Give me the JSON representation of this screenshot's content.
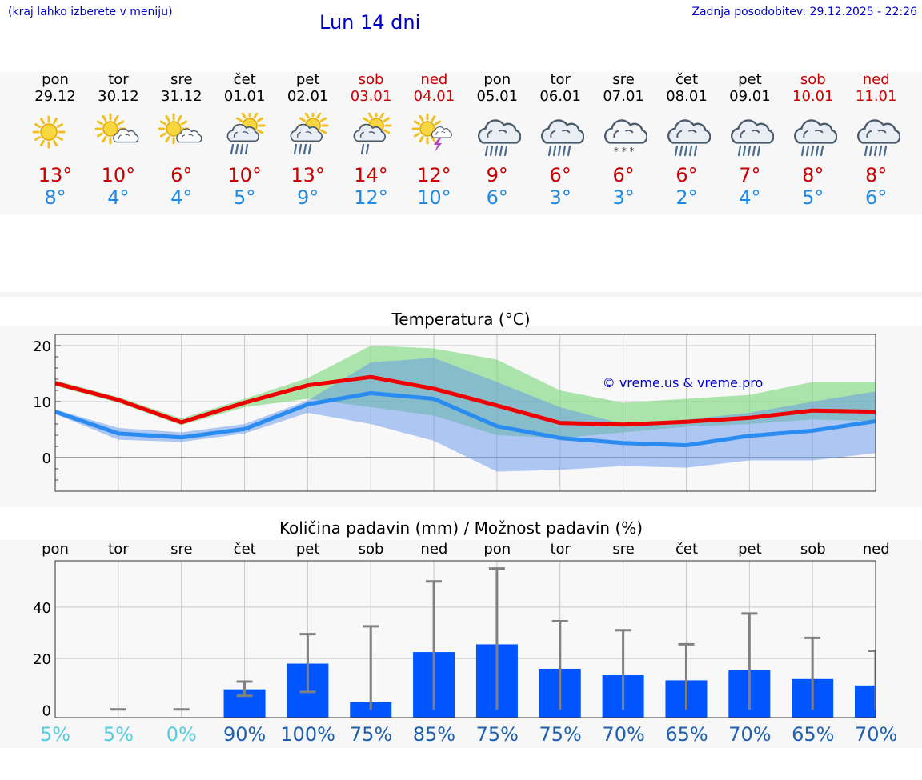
{
  "header": {
    "hint": "(kraj lahko izberete v meniju)",
    "title": "Lun 14 dni",
    "updated": "Zadnja posodobitev: 29.12.2025 - 22:26"
  },
  "colors": {
    "accent": "#0000cc",
    "max_temp": "#cc0000",
    "min_temp": "#1e8ae6",
    "bar": "#0055ff",
    "prob_low": "#55cce0",
    "prob_high": "#1e5fb0"
  },
  "days": [
    {
      "name": "pon",
      "date": "29.12",
      "weekend": false,
      "icon": "sunny-icon",
      "tmax": "13°",
      "tmin": "8°"
    },
    {
      "name": "tor",
      "date": "30.12",
      "weekend": false,
      "icon": "sun-cloud-icon",
      "tmax": "10°",
      "tmin": "4°"
    },
    {
      "name": "sre",
      "date": "31.12",
      "weekend": false,
      "icon": "sun-cloud-icon",
      "tmax": "6°",
      "tmin": "4°"
    },
    {
      "name": "čet",
      "date": "01.01",
      "weekend": false,
      "icon": "sun-rain-icon",
      "tmax": "10°",
      "tmin": "5°"
    },
    {
      "name": "pet",
      "date": "02.01",
      "weekend": false,
      "icon": "sun-rain-icon",
      "tmax": "13°",
      "tmin": "9°"
    },
    {
      "name": "sob",
      "date": "03.01",
      "weekend": true,
      "icon": "sun-shower-icon",
      "tmax": "14°",
      "tmin": "12°"
    },
    {
      "name": "ned",
      "date": "04.01",
      "weekend": true,
      "icon": "sun-thunder-icon",
      "tmax": "12°",
      "tmin": "10°"
    },
    {
      "name": "pon",
      "date": "05.01",
      "weekend": false,
      "icon": "rain-icon",
      "tmax": "9°",
      "tmin": "6°"
    },
    {
      "name": "tor",
      "date": "06.01",
      "weekend": false,
      "icon": "rain-icon",
      "tmax": "6°",
      "tmin": "3°"
    },
    {
      "name": "sre",
      "date": "07.01",
      "weekend": false,
      "icon": "snow-icon",
      "tmax": "6°",
      "tmin": "3°"
    },
    {
      "name": "čet",
      "date": "08.01",
      "weekend": false,
      "icon": "rain-icon",
      "tmax": "6°",
      "tmin": "2°"
    },
    {
      "name": "pet",
      "date": "09.01",
      "weekend": false,
      "icon": "rain-icon",
      "tmax": "7°",
      "tmin": "4°"
    },
    {
      "name": "sob",
      "date": "10.01",
      "weekend": true,
      "icon": "rain-icon",
      "tmax": "8°",
      "tmin": "5°"
    },
    {
      "name": "ned",
      "date": "11.01",
      "weekend": true,
      "icon": "rain-icon",
      "tmax": "8°",
      "tmin": "6°"
    }
  ],
  "chart_data": [
    {
      "type": "line",
      "title": "Temperatura (°C)",
      "watermark": "© vreme.us & vreme.pro",
      "ylim": [
        -6,
        22
      ],
      "yticks": [
        "0",
        "10",
        "20"
      ],
      "x": [
        0,
        1,
        2,
        3,
        4,
        5,
        6,
        7,
        8,
        9,
        10,
        11,
        12,
        13
      ],
      "series": [
        {
          "name": "max",
          "values": [
            13.3,
            10.3,
            6.3,
            9.8,
            12.9,
            14.4,
            12.3,
            9.3,
            6.2,
            5.9,
            6.4,
            7.1,
            8.4,
            8.2
          ]
        },
        {
          "name": "min",
          "values": [
            8.2,
            4.3,
            3.6,
            5.1,
            9.5,
            11.5,
            10.5,
            5.6,
            3.5,
            2.6,
            2.2,
            3.9,
            4.8,
            6.5
          ]
        }
      ],
      "bands": [
        {
          "name": "max-range",
          "low": [
            12.8,
            9.8,
            5.8,
            9.0,
            10.5,
            9.0,
            7.5,
            4.0,
            3.5,
            4.5,
            5.5,
            6.0,
            6.8,
            6.5
          ],
          "high": [
            13.8,
            10.8,
            7.0,
            10.5,
            14.2,
            20.0,
            19.5,
            17.5,
            12.0,
            9.8,
            10.5,
            11.2,
            13.5,
            13.5
          ]
        },
        {
          "name": "min-range",
          "low": [
            7.8,
            3.2,
            2.8,
            4.3,
            8.0,
            6.0,
            3.0,
            -2.5,
            -2.2,
            -1.5,
            -1.8,
            -0.5,
            -0.5,
            0.8
          ],
          "high": [
            8.6,
            5.3,
            4.5,
            6.0,
            10.2,
            17.0,
            17.8,
            13.5,
            9.0,
            6.0,
            6.8,
            8.0,
            10.0,
            11.8
          ]
        }
      ]
    },
    {
      "type": "bar",
      "title": "Količina padavin (mm) / Možnost padavin (%)",
      "ylim": [
        -3,
        58
      ],
      "yticks": [
        "0",
        "20",
        "40"
      ],
      "categories": [
        "pon",
        "tor",
        "sre",
        "čet",
        "pet",
        "sob",
        "ned",
        "pon",
        "tor",
        "sre",
        "čet",
        "pet",
        "sob",
        "ned"
      ],
      "values": [
        0,
        0,
        0,
        8,
        18,
        3,
        22.5,
        25.5,
        16,
        13.5,
        11.5,
        15.5,
        12,
        9.5
      ],
      "error_low": [
        0,
        0,
        0,
        5.5,
        7,
        0,
        0,
        0,
        0,
        0,
        0,
        0,
        0,
        0
      ],
      "error_high": [
        0,
        0.2,
        0.2,
        11,
        29.5,
        32.5,
        50,
        55,
        34.5,
        31,
        25.5,
        37.5,
        28,
        23
      ],
      "probability": [
        "5%",
        "5%",
        "0%",
        "90%",
        "100%",
        "75%",
        "85%",
        "75%",
        "75%",
        "70%",
        "65%",
        "70%",
        "65%",
        "70%"
      ],
      "probability_values": [
        5,
        5,
        0,
        90,
        100,
        75,
        85,
        75,
        75,
        70,
        65,
        70,
        65,
        70
      ]
    }
  ]
}
